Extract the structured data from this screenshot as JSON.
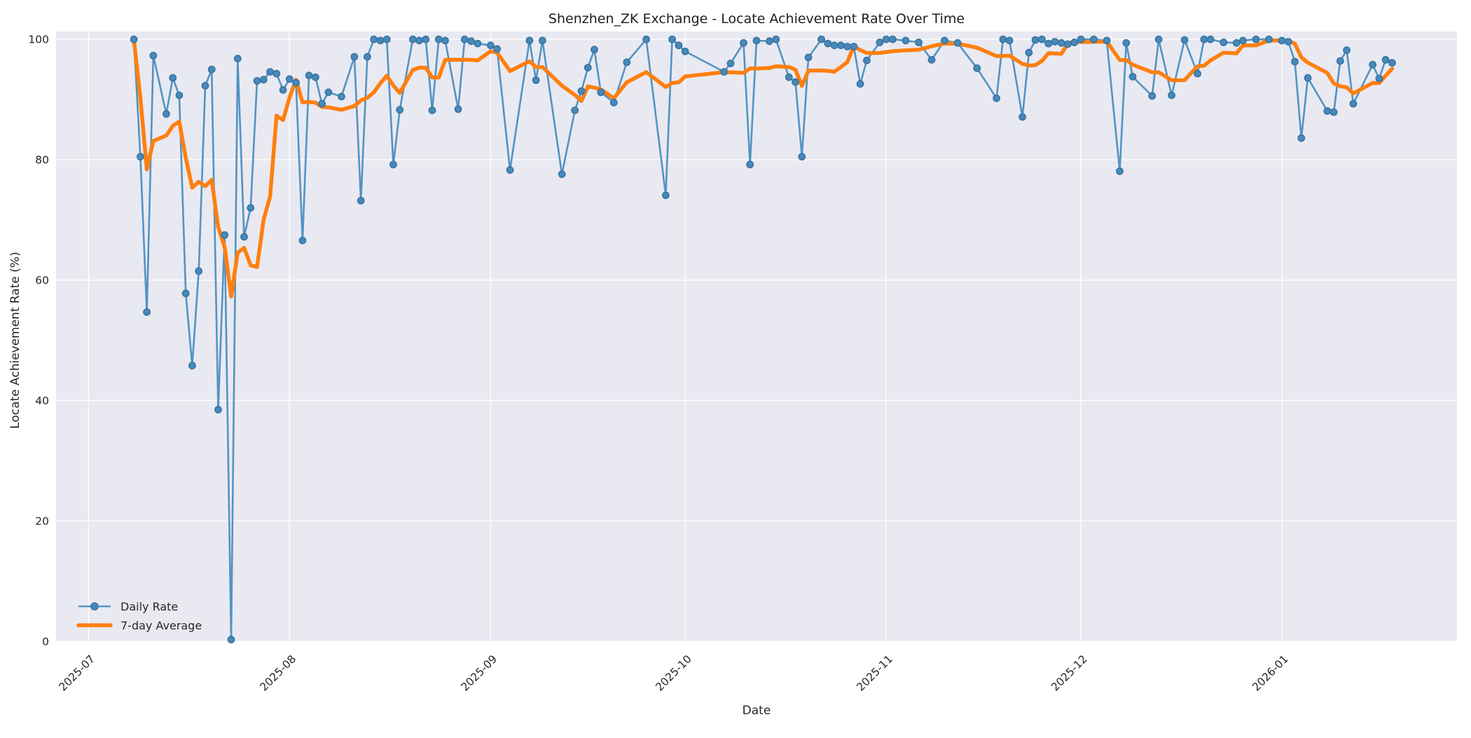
{
  "chart_data": {
    "type": "line",
    "title": "Shenzhen_ZK Exchange - Locate Achievement Rate Over Time",
    "xlabel": "Date",
    "ylabel": "Locate Achievement Rate (%)",
    "grid": true,
    "legend": {
      "position": "lower left",
      "entries": [
        "Daily Rate",
        "7-day Average"
      ]
    },
    "y_axis": {
      "min": 0,
      "max": 101.3,
      "ticks": [
        0,
        20,
        40,
        60,
        80,
        100
      ]
    },
    "x_axis": {
      "start": "2025-06-26",
      "end": "2026-01-28",
      "ticks": [
        {
          "label": "2025-07",
          "date": "2025-07-01"
        },
        {
          "label": "2025-08",
          "date": "2025-08-01"
        },
        {
          "label": "2025-09",
          "date": "2025-09-01"
        },
        {
          "label": "2025-10",
          "date": "2025-10-01"
        },
        {
          "label": "2025-11",
          "date": "2025-11-01"
        },
        {
          "label": "2025-12",
          "date": "2025-12-01"
        },
        {
          "label": "2026-01",
          "date": "2026-01-01"
        }
      ]
    },
    "style": {
      "figure_background": "#ffffff",
      "axes_background": "#e9e9f2",
      "grid_color": "#ffffff",
      "daily_color": "#5294c3",
      "daily_marker_fill": "#4789ba",
      "daily_marker_edge": "#39749f",
      "average_color": "#ff7f0e",
      "text_color": "#262626"
    },
    "series": [
      {
        "name": "Daily Rate",
        "dates": [
          "2025-07-08",
          "2025-07-09",
          "2025-07-10",
          "2025-07-11",
          "2025-07-13",
          "2025-07-14",
          "2025-07-15",
          "2025-07-16",
          "2025-07-17",
          "2025-07-18",
          "2025-07-19",
          "2025-07-20",
          "2025-07-21",
          "2025-07-22",
          "2025-07-23",
          "2025-07-24",
          "2025-07-25",
          "2025-07-26",
          "2025-07-27",
          "2025-07-28",
          "2025-07-29",
          "2025-07-30",
          "2025-07-31",
          "2025-08-01",
          "2025-08-02",
          "2025-08-03",
          "2025-08-04",
          "2025-08-05",
          "2025-08-06",
          "2025-08-07",
          "2025-08-09",
          "2025-08-11",
          "2025-08-12",
          "2025-08-13",
          "2025-08-14",
          "2025-08-15",
          "2025-08-16",
          "2025-08-17",
          "2025-08-18",
          "2025-08-20",
          "2025-08-21",
          "2025-08-22",
          "2025-08-23",
          "2025-08-24",
          "2025-08-25",
          "2025-08-27",
          "2025-08-28",
          "2025-08-29",
          "2025-08-30",
          "2025-09-01",
          "2025-09-02",
          "2025-09-04",
          "2025-09-07",
          "2025-09-08",
          "2025-09-09",
          "2025-09-12",
          "2025-09-14",
          "2025-09-15",
          "2025-09-16",
          "2025-09-17",
          "2025-09-18",
          "2025-09-20",
          "2025-09-22",
          "2025-09-25",
          "2025-09-28",
          "2025-09-29",
          "2025-09-30",
          "2025-10-01",
          "2025-10-07",
          "2025-10-08",
          "2025-10-10",
          "2025-10-11",
          "2025-10-12",
          "2025-10-14",
          "2025-10-15",
          "2025-10-17",
          "2025-10-18",
          "2025-10-19",
          "2025-10-20",
          "2025-10-22",
          "2025-10-23",
          "2025-10-24",
          "2025-10-25",
          "2025-10-26",
          "2025-10-27",
          "2025-10-28",
          "2025-10-29",
          "2025-10-31",
          "2025-11-01",
          "2025-11-02",
          "2025-11-04",
          "2025-11-06",
          "2025-11-08",
          "2025-11-10",
          "2025-11-12",
          "2025-11-15",
          "2025-11-18",
          "2025-11-19",
          "2025-11-20",
          "2025-11-22",
          "2025-11-23",
          "2025-11-24",
          "2025-11-25",
          "2025-11-26",
          "2025-11-27",
          "2025-11-28",
          "2025-11-29",
          "2025-11-30",
          "2025-12-01",
          "2025-12-03",
          "2025-12-05",
          "2025-12-07",
          "2025-12-08",
          "2025-12-09",
          "2025-12-12",
          "2025-12-13",
          "2025-12-15",
          "2025-12-17",
          "2025-12-19",
          "2025-12-20",
          "2025-12-21",
          "2025-12-23",
          "2025-12-25",
          "2025-12-26",
          "2025-12-28",
          "2025-12-30",
          "2026-01-01",
          "2026-01-02",
          "2026-01-03",
          "2026-01-04",
          "2026-01-05",
          "2026-01-08",
          "2026-01-09",
          "2026-01-10",
          "2026-01-11",
          "2026-01-12",
          "2026-01-15",
          "2026-01-16",
          "2026-01-17",
          "2026-01-18"
        ],
        "values": [
          100,
          80.5,
          54.7,
          97.3,
          87.6,
          93.6,
          90.7,
          57.8,
          45.8,
          61.5,
          92.3,
          95.0,
          38.5,
          67.5,
          0.3,
          96.8,
          67.2,
          72.0,
          93.1,
          93.3,
          94.6,
          94.3,
          91.6,
          93.4,
          92.8,
          66.6,
          94.0,
          93.7,
          89.3,
          91.2,
          90.5,
          97.1,
          73.2,
          97.1,
          100,
          99.8,
          100,
          79.2,
          88.3,
          100,
          99.8,
          100,
          88.2,
          100,
          99.8,
          88.4,
          100,
          99.7,
          99.3,
          99.0,
          98.4,
          78.3,
          99.8,
          93.2,
          99.8,
          77.6,
          88.2,
          91.4,
          95.3,
          98.3,
          91.2,
          89.5,
          96.2,
          100,
          74.1,
          100,
          99.0,
          98.0,
          94.6,
          96.0,
          99.4,
          79.2,
          99.8,
          99.7,
          100,
          93.7,
          92.9,
          80.5,
          97.0,
          100,
          99.3,
          99.0,
          99.0,
          98.8,
          98.8,
          92.6,
          96.5,
          99.5,
          100,
          100,
          99.8,
          99.5,
          96.6,
          99.8,
          99.4,
          95.2,
          90.2,
          100,
          99.8,
          87.1,
          97.8,
          99.9,
          100,
          99.3,
          99.6,
          99.4,
          99.2,
          99.5,
          100,
          100,
          99.8,
          78.1,
          99.4,
          93.8,
          90.6,
          100,
          90.7,
          99.9,
          94.3,
          100,
          100,
          99.5,
          99.4,
          99.8,
          100,
          100,
          99.8,
          99.6,
          96.3,
          83.6,
          93.6,
          88.1,
          87.9,
          96.4,
          98.2,
          89.3,
          95.8,
          93.5,
          96.6,
          96.1
        ]
      },
      {
        "name": "7-day Average",
        "derived": "rolling_mean_of_daily_rate",
        "window": 7
      }
    ]
  }
}
